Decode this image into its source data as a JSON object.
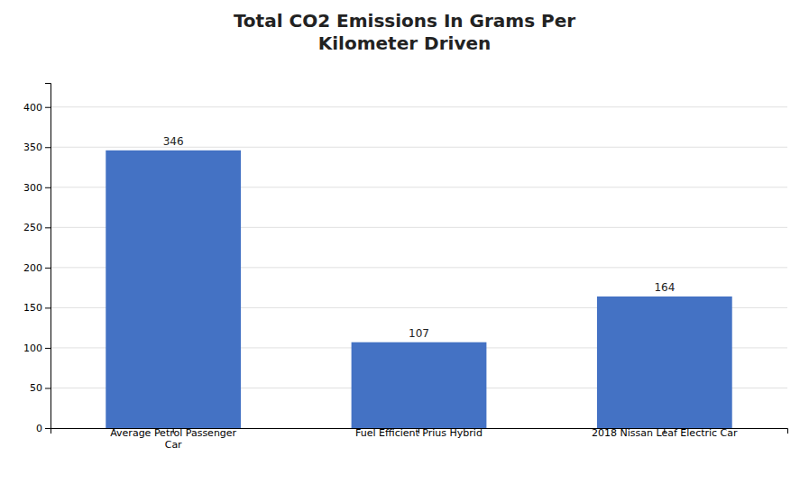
{
  "chart_data": {
    "type": "bar",
    "title": "Total CO2 Emissions In Grams Per\nKilometer Driven",
    "categories": [
      "Average Petrol Passenger\nCar",
      "Fuel Efficient Prius Hybrid",
      "2018 Nissan Leaf Electric Car"
    ],
    "values": [
      346,
      107,
      164
    ],
    "color": "#4472C4",
    "ylim": [
      0,
      430
    ],
    "yticks": [
      0,
      50,
      100,
      150,
      200,
      250,
      300,
      350,
      400
    ],
    "grid": true,
    "data_labels": true
  }
}
